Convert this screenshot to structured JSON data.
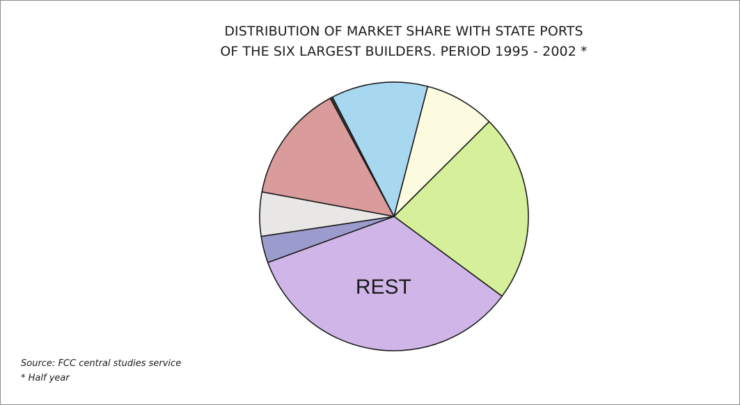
{
  "chart_data": {
    "type": "pie",
    "title_line1": "DISTRIBUTION OF MARKET SHARE WITH STATE PORTS",
    "title_line2": "OF THE SIX LARGEST BUILDERS. PERIOD 1995 - 2002 *",
    "start_angle_deg": -75.5,
    "direction": "clockwise",
    "slices": [
      {
        "label": "",
        "value": 8.5,
        "color": "#fcfbe0"
      },
      {
        "label": "",
        "value": 22.6,
        "color": "#d6ef9b"
      },
      {
        "label": "REST",
        "value": 34.3,
        "color": "#d0b6e8"
      },
      {
        "label": "",
        "value": 3.2,
        "color": "#9c9bcd"
      },
      {
        "label": "",
        "value": 5.3,
        "color": "#e9e6e6"
      },
      {
        "label": "",
        "value": 14.2,
        "color": "#d99b9b"
      },
      {
        "label": "",
        "value": 0.3,
        "color": "#3a3a3a"
      },
      {
        "label": "",
        "value": 11.6,
        "color": "#a8d8f0"
      }
    ]
  },
  "footnotes": {
    "source": "Source: FCC central studies service",
    "note": "* Half year"
  }
}
